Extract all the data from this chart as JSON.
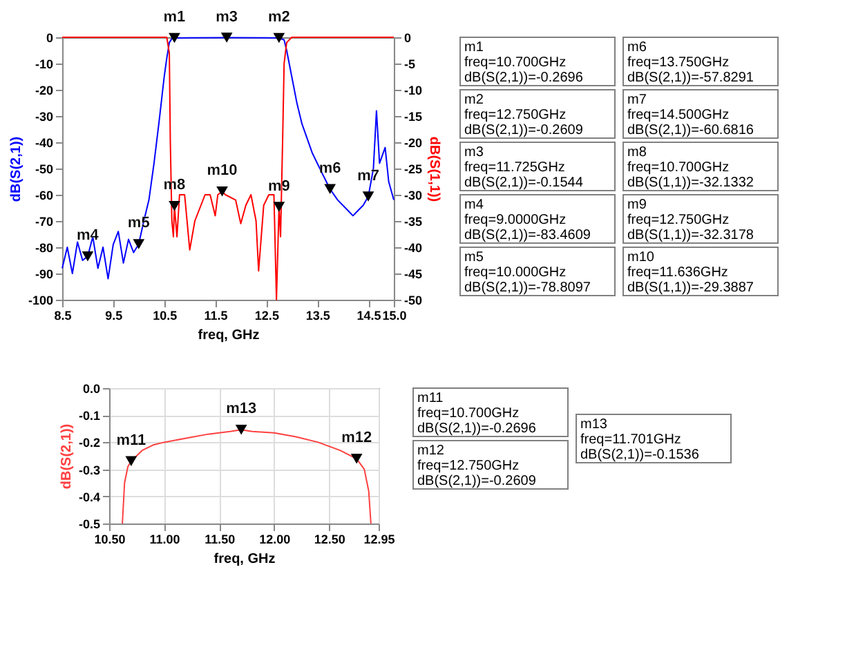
{
  "chart_data": [
    {
      "type": "line",
      "xlabel": "freq, GHz",
      "ylabel": "dB(S(2,1))",
      "y2label": "dB(S(1,1))",
      "xlim": [
        8.5,
        15
      ],
      "xticks": [
        8.5,
        9.5,
        10.5,
        11.5,
        12.5,
        13.5,
        14.5,
        {
          "value": 15,
          "label": "15.0"
        }
      ],
      "ylim": [
        -100,
        0
      ],
      "yticks": [
        -100,
        -90,
        -80,
        -70,
        -60,
        -50,
        -40,
        -30,
        -20,
        -10,
        0
      ],
      "y2lim": [
        -50,
        0
      ],
      "y2ticks": [
        -50,
        -45,
        -40,
        -35,
        -30,
        -25,
        -20,
        -15,
        -10,
        -5,
        0
      ],
      "grid": false,
      "series": [
        {
          "color": "#0000ff",
          "x": [
            8.5,
            8.6,
            8.7,
            8.8,
            8.9,
            9.0,
            9.1,
            9.2,
            9.3,
            9.4,
            9.5,
            9.6,
            9.7,
            9.8,
            9.9,
            10.0,
            10.1,
            10.2,
            10.3,
            10.4,
            10.5,
            10.55,
            10.6,
            10.65,
            10.7,
            11.0,
            11.725,
            12.5,
            12.75,
            12.85,
            12.9,
            13.0,
            13.1,
            13.2,
            13.4,
            13.6,
            13.75,
            13.9,
            14.1,
            14.2,
            14.3,
            14.4,
            14.5,
            14.6,
            14.66,
            14.72,
            14.83,
            14.9,
            15.0
          ],
          "values": [
            -88,
            -80,
            -90,
            -78,
            -85,
            -83.4609,
            -76,
            -88,
            -80,
            -92,
            -79,
            -74,
            -86,
            -77,
            -82,
            -78.8097,
            -70,
            -62,
            -48,
            -32,
            -15,
            -8,
            -2,
            -0.5,
            -0.2696,
            -0.2,
            -0.1544,
            -0.2,
            -0.2609,
            -1,
            -5,
            -15,
            -25,
            -33,
            -44,
            -52,
            -57.8291,
            -62,
            -66,
            -68,
            -66,
            -64,
            -60.6816,
            -50,
            -28,
            -48,
            -42,
            -55,
            -62
          ]
        },
        {
          "color": "#ff0000",
          "axis": "y2",
          "x": [
            8.5,
            10.55,
            10.6,
            10.62,
            10.65,
            10.68,
            10.7,
            10.75,
            10.8,
            10.9,
            11.0,
            11.1,
            11.3,
            11.4,
            11.5,
            11.55,
            11.636,
            11.7,
            11.9,
            12.0,
            12.1,
            12.2,
            12.3,
            12.35,
            12.45,
            12.55,
            12.65,
            12.7,
            12.75,
            12.78,
            12.82,
            12.85,
            12.9,
            13.0,
            15.0
          ],
          "values": [
            0,
            0,
            -3,
            -20,
            -35,
            -38,
            -32.1332,
            -38,
            -30,
            -30,
            -40.5,
            -35,
            -30,
            -30,
            -34,
            -30,
            -29.3887,
            -30,
            -31,
            -35.5,
            -32,
            -30,
            -35,
            -44.5,
            -32,
            -30,
            -30,
            -50,
            -32.3178,
            -38,
            -20,
            -5,
            -1,
            0,
            0
          ]
        },
        {
          "type": "scatter",
          "marker": "triangle",
          "color": "#000000",
          "x": [
            10.7,
            12.75,
            11.725,
            9.0,
            10.0,
            13.75,
            14.5
          ],
          "values": [
            -0.2696,
            -0.2609,
            -0.1544,
            -83.4609,
            -78.8097,
            -57.8291,
            -60.6816
          ],
          "value_labels": [
            "m1",
            "m2",
            "m3",
            "m4",
            "m5",
            "m6",
            "m7"
          ]
        },
        {
          "type": "scatter",
          "marker": "triangle",
          "color": "#000000",
          "axis": "y2",
          "x": [
            10.7,
            12.75,
            11.636
          ],
          "values": [
            -32.1332,
            -32.3178,
            -29.3887
          ],
          "value_labels": [
            "m8",
            "m9",
            "m10"
          ]
        }
      ],
      "annotations": [
        "m1\nfreq=10.700GHz\ndB(S(2,1))=-0.2696",
        "m2\nfreq=12.750GHz\ndB(S(2,1))=-0.2609",
        "m3\nfreq=11.725GHz\ndB(S(2,1))=-0.1544",
        "m4\nfreq=9.0000GHz\ndB(S(2,1))=-83.4609",
        "m5\nfreq=10.000GHz\ndB(S(2,1))=-78.8097",
        "m6\nfreq=13.750GHz\ndB(S(2,1))=-57.8291",
        "m7\nfreq=14.500GHz\ndB(S(2,1))=-60.6816",
        "m8\nfreq=10.700GHz\ndB(S(1,1))=-32.1332",
        "m9\nfreq=12.750GHz\ndB(S(1,1))=-32.3178",
        "m10\nfreq=11.636GHz\ndB(S(1,1))=-29.3887"
      ]
    },
    {
      "type": "line",
      "xlabel": "freq, GHz",
      "ylabel": "dB(S(2,1))",
      "xlim": [
        10.5,
        12.95
      ],
      "xticks": [
        {
          "value": 10.5,
          "label": "10.50"
        },
        {
          "value": 11,
          "label": "11.00"
        },
        {
          "value": 11.5,
          "label": "11.50"
        },
        {
          "value": 12,
          "label": "12.00"
        },
        {
          "value": 12.5,
          "label": "12.50"
        },
        {
          "value": 12.95,
          "label": "12.95"
        }
      ],
      "ylim": [
        -0.5,
        0
      ],
      "yticks": [
        -0.5,
        -0.4,
        -0.3,
        -0.2,
        -0.1,
        {
          "value": 0,
          "label": "0.0"
        }
      ],
      "grid": true,
      "series": [
        {
          "color": "#ff4040",
          "x": [
            10.62,
            10.64,
            10.67,
            10.7,
            10.8,
            10.9,
            11.0,
            11.2,
            11.4,
            11.6,
            11.701,
            11.8,
            12.0,
            12.2,
            12.4,
            12.6,
            12.75,
            12.82,
            12.86,
            12.88
          ],
          "values": [
            -0.5,
            -0.35,
            -0.29,
            -0.2696,
            -0.23,
            -0.21,
            -0.2,
            -0.185,
            -0.17,
            -0.16,
            -0.1536,
            -0.16,
            -0.165,
            -0.18,
            -0.2,
            -0.23,
            -0.2609,
            -0.3,
            -0.38,
            -0.5
          ]
        },
        {
          "type": "scatter",
          "marker": "triangle",
          "color": "#000000",
          "x": [
            10.7,
            12.75,
            11.701
          ],
          "values": [
            -0.2696,
            -0.2609,
            -0.1536
          ],
          "value_labels": [
            "m11",
            "m12",
            "m13"
          ]
        }
      ],
      "annotations": [
        "m11\nfreq=10.700GHz\ndB(S(2,1))=-0.2696",
        "m12\nfreq=12.750GHz\ndB(S(2,1))=-0.2609",
        "m13\nfreq=11.701GHz\ndB(S(2,1))=-0.1536"
      ]
    }
  ]
}
